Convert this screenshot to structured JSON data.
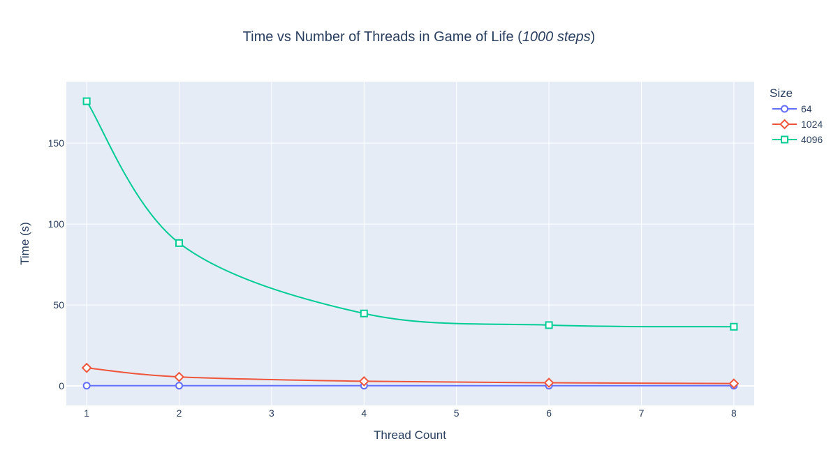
{
  "chart_data": {
    "type": "line",
    "title_main": "Time vs Number of Threads in Game of Life (",
    "title_italic": "1000 steps",
    "title_close": ")",
    "xlabel": "Thread Count",
    "ylabel": "Time (s)",
    "xlim": [
      0.78,
      8.22
    ],
    "ylim": [
      -12,
      188
    ],
    "x_ticks": [
      1,
      2,
      3,
      4,
      5,
      6,
      7,
      8
    ],
    "y_ticks": [
      0,
      50,
      100,
      150
    ],
    "grid": true,
    "legend_title": "Size",
    "legend_position": "top-right",
    "x": [
      1,
      2,
      4,
      6,
      8
    ],
    "series": [
      {
        "name": "64",
        "values": [
          0.2,
          0.2,
          0.2,
          0.2,
          0.2
        ],
        "color": "#636efa",
        "marker": "circle"
      },
      {
        "name": "1024",
        "values": [
          11.2,
          5.6,
          2.9,
          2.0,
          1.5
        ],
        "color": "#ef553b",
        "marker": "diamond"
      },
      {
        "name": "4096",
        "values": [
          175.9,
          88.3,
          44.8,
          37.6,
          36.6
        ],
        "color": "#00cc96",
        "marker": "square"
      }
    ]
  }
}
